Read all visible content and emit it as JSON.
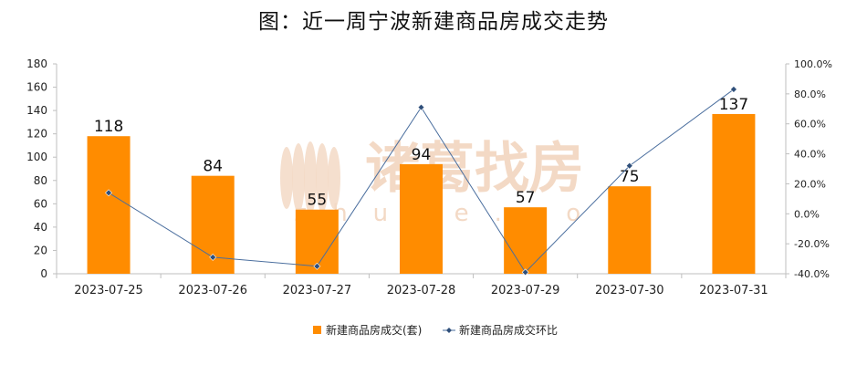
{
  "title": "图：近一周宁波新建商品房成交走势",
  "watermark": {
    "text": "诸葛找房",
    "sub": "zhuge.com",
    "color": "#f3d9c5"
  },
  "chart_data": {
    "type": "bar",
    "categories": [
      "2023-07-25",
      "2023-07-26",
      "2023-07-27",
      "2023-07-28",
      "2023-07-29",
      "2023-07-30",
      "2023-07-31"
    ],
    "series": [
      {
        "name": "新建商品房成交(套)",
        "type": "bar",
        "axis": "left",
        "color": "#ff8c00",
        "values": [
          118,
          84,
          55,
          94,
          57,
          75,
          137
        ]
      },
      {
        "name": "新建商品房成交环比",
        "type": "line",
        "axis": "right",
        "color": "#4a6e9e",
        "values": [
          14.0,
          -29.0,
          -35.0,
          71.0,
          -39.0,
          32.0,
          83.0
        ]
      }
    ],
    "y_left": {
      "min": 0,
      "max": 180,
      "step": 20
    },
    "y_right": {
      "min": -40,
      "max": 100,
      "step": 20,
      "format": "percent"
    },
    "legend": "bottom-center",
    "grid": false
  }
}
